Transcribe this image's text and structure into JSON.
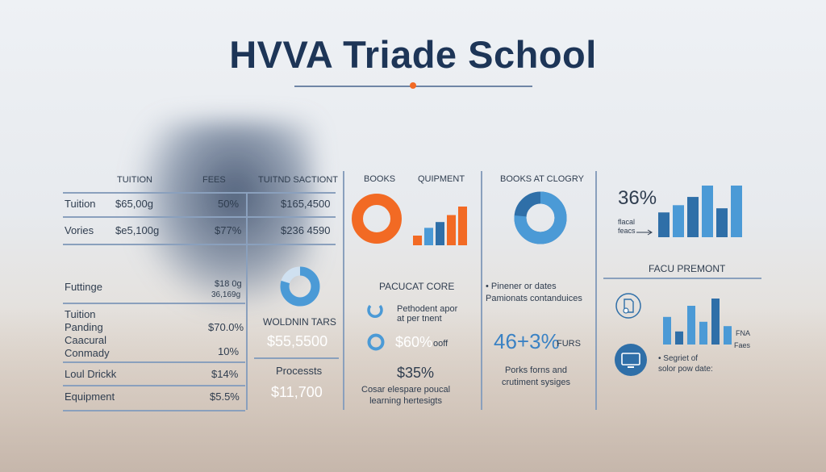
{
  "title": "HVVA Triade School",
  "tuition_table": {
    "headers": [
      "TUITION",
      "FEES",
      "TUITND SACTIONT"
    ],
    "rows": [
      {
        "label": "Tuition",
        "amount": "$65,00g",
        "pct": "50%",
        "extra": "$165,4500"
      },
      {
        "label": "Vories",
        "amount": "$e5,100g",
        "pct": "$77%",
        "extra": "$236 4590"
      }
    ]
  },
  "lower_table": {
    "rows": [
      {
        "label": "Futtinge",
        "value": "$18 0g",
        "sub": "36,169g"
      },
      {
        "label": "Tuition\nPanding\nCaacural\nConmady",
        "value": "$70.0%",
        "sub": "10%"
      },
      {
        "label": "Loul Drickk",
        "value": "$14%"
      },
      {
        "label": "Equipment",
        "value": "$5.5%"
      }
    ]
  },
  "mid_left": {
    "label1": "WOLDNIN TARS",
    "value1": "$55,5500",
    "label2": "Processts",
    "value2": "$11,700"
  },
  "books_panel": {
    "books_label": "BOOKS",
    "equipment_label": "QUIPMENT",
    "equipment_bars": [
      0.25,
      0.45,
      0.6,
      0.78,
      1.0
    ],
    "core_label": "PACUCAT CORE",
    "item1": "Pethodent apor\nat per tnent",
    "item2_value": "$60%",
    "item2_text": "ooff",
    "big_value": "$35%",
    "footnote": "Cosar elespare poucal\nlearning hertesigts"
  },
  "category_panel": {
    "title": "BOOKS AT CLOGRY",
    "bullet": "Pinener or dates\nPamionats contanduices",
    "big_value": "46+3%",
    "big_suffix": "FURS",
    "text": "Porks forns and\ncrutiment sysiges"
  },
  "right_panel": {
    "pct": "36%",
    "legend": "flacal\nfeacs",
    "bars_top": [
      0.48,
      0.62,
      0.78,
      1.0,
      0.56,
      1.0
    ],
    "premont_title": "FACU PREMONT",
    "bars_bottom": [
      0.57,
      0.27,
      0.8,
      0.47,
      0.95,
      0.38
    ],
    "fna_label": "FNA",
    "fees_label": "Faes",
    "bullet": "Segriet of\nsolor pow date:"
  },
  "colors": {
    "navy": "#1d3557",
    "blue": "#3b82c4",
    "orange": "#f26a24",
    "line": "#8aa0bd"
  }
}
